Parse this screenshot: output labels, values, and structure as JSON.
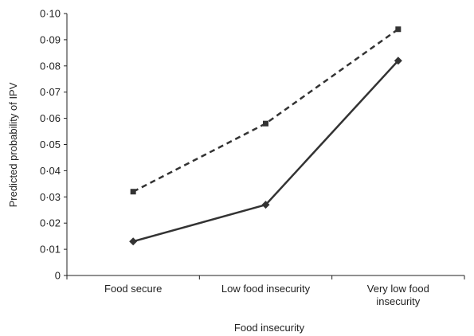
{
  "chart_data": {
    "type": "line",
    "title": "",
    "xlabel": "Food insecurity",
    "ylabel": "Predicted probability of IPV",
    "categories": [
      [
        "Food secure"
      ],
      [
        "Low food insecurity"
      ],
      [
        "Very low food",
        "insecurity"
      ]
    ],
    "ylim": [
      0,
      0.1
    ],
    "yticks": [
      0,
      0.01,
      0.02,
      0.03,
      0.04,
      0.05,
      0.06,
      0.07,
      0.08,
      0.09,
      0.1
    ],
    "ytick_labels": [
      "0",
      "0·01",
      "0·02",
      "0·03",
      "0·04",
      "0·05",
      "0·06",
      "0·07",
      "0·08",
      "0·09",
      "0·10"
    ],
    "grid": false,
    "legend": "none",
    "series": [
      {
        "style": "dashed",
        "marker": "square",
        "color": "#333333",
        "values": [
          0.032,
          0.058,
          0.094
        ]
      },
      {
        "style": "solid",
        "marker": "diamond",
        "color": "#333333",
        "values": [
          0.013,
          0.027,
          0.082
        ]
      }
    ]
  }
}
